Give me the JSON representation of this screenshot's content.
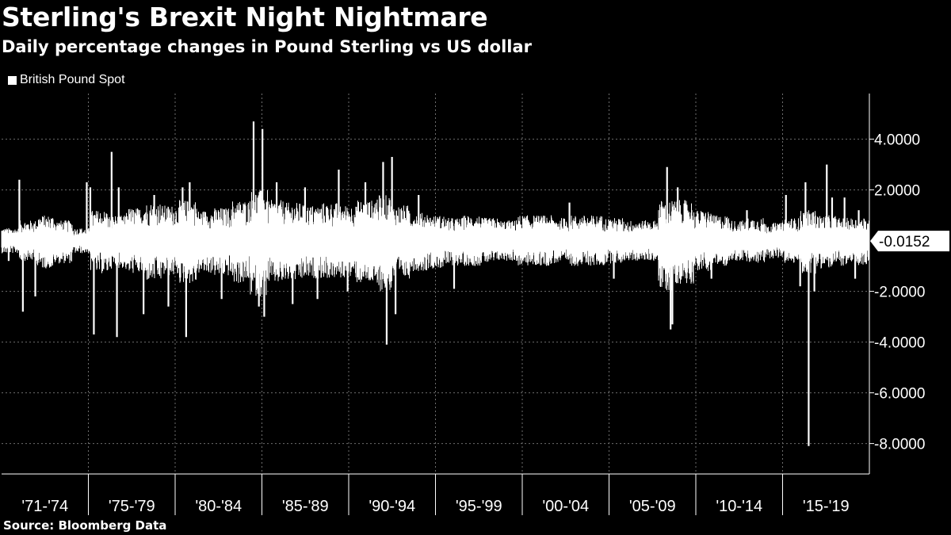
{
  "title": "Sterling's Brexit Night Nightmare",
  "subtitle": "Daily percentage changes in Pound Sterling vs US dollar",
  "legend": {
    "label": "British Pound Spot",
    "color": "#ffffff"
  },
  "source": "Source: Bloomberg Data",
  "colors": {
    "background": "#000000",
    "series": "#ffffff",
    "grid": "#6e6e6e"
  },
  "chart_data": {
    "type": "bar",
    "title": "Sterling's Brexit Night Nightmare",
    "subtitle": "Daily percentage changes in Pound Sterling vs US dollar",
    "ylim": [
      -9.2,
      5.8
    ],
    "y_ticks": [
      4,
      2,
      -2,
      -4,
      -6,
      -8
    ],
    "y_tick_labels": [
      "4.0000",
      "2.0000",
      "-2.0000",
      "-4.0000",
      "-6.0000",
      "-8.0000"
    ],
    "y_axis_side": "right",
    "grid": true,
    "legend_position": "top-left",
    "categories": [
      "'71-'74",
      "'75-'79",
      "'80-'84",
      "'85-'89",
      "'90-'94",
      "'95-'99",
      "'00-'04",
      "'05-'09",
      "'10-'14",
      "'15-'19"
    ],
    "last_value": -0.0152,
    "last_value_label": "-0.0152",
    "series": [
      {
        "name": "British Pound Spot",
        "envelope": {
          "period_start": [
            1971,
            1972,
            1973,
            1974,
            1975,
            1976,
            1977,
            1978,
            1979,
            1980,
            1981,
            1982,
            1983,
            1984,
            1985,
            1986,
            1987,
            1988,
            1989,
            1990,
            1991,
            1992,
            1993,
            1994,
            1995,
            1996,
            1997,
            1998,
            1999,
            2000,
            2001,
            2002,
            2003,
            2004,
            2005,
            2006,
            2007,
            2008,
            2009,
            2010,
            2011,
            2012,
            2013,
            2014,
            2015,
            2016,
            2017,
            2018,
            2019
          ],
          "typical_high": [
            0.5,
            0.8,
            1.0,
            0.8,
            0.5,
            1.2,
            1.0,
            1.3,
            1.5,
            1.4,
            1.6,
            1.2,
            1.3,
            1.6,
            2.0,
            1.6,
            1.5,
            1.4,
            1.5,
            1.4,
            1.6,
            1.8,
            1.4,
            1.1,
            1.0,
            0.9,
            1.0,
            0.9,
            0.8,
            1.0,
            1.0,
            0.9,
            1.0,
            1.0,
            0.9,
            0.8,
            0.8,
            1.6,
            1.6,
            1.2,
            1.0,
            0.8,
            0.9,
            0.7,
            0.9,
            1.2,
            1.0,
            0.9,
            0.9
          ],
          "typical_low": [
            -0.5,
            -0.8,
            -1.1,
            -0.9,
            -0.5,
            -1.3,
            -1.1,
            -1.3,
            -1.6,
            -1.4,
            -1.7,
            -1.3,
            -1.4,
            -1.7,
            -2.2,
            -1.7,
            -1.6,
            -1.5,
            -1.5,
            -1.5,
            -1.7,
            -2.0,
            -1.5,
            -1.2,
            -1.1,
            -1.0,
            -1.0,
            -0.9,
            -0.8,
            -1.0,
            -1.0,
            -0.9,
            -1.0,
            -1.0,
            -0.9,
            -0.8,
            -0.8,
            -2.0,
            -1.7,
            -1.2,
            -1.0,
            -0.8,
            -0.9,
            -0.7,
            -0.9,
            -1.3,
            -1.1,
            -1.0,
            -1.0
          ]
        },
        "spikes": [
          {
            "t": 1971.4,
            "v": -0.8
          },
          {
            "t": 1972.0,
            "v": 2.4
          },
          {
            "t": 1972.2,
            "v": -2.8
          },
          {
            "t": 1972.9,
            "v": -2.2
          },
          {
            "t": 1975.8,
            "v": 2.3
          },
          {
            "t": 1976.2,
            "v": -3.7
          },
          {
            "t": 1976.0,
            "v": 2.1
          },
          {
            "t": 1977.2,
            "v": 3.5
          },
          {
            "t": 1977.5,
            "v": -3.8
          },
          {
            "t": 1977.6,
            "v": 2.1
          },
          {
            "t": 1979.0,
            "v": -2.9
          },
          {
            "t": 1979.6,
            "v": 1.8
          },
          {
            "t": 1980.4,
            "v": -2.6
          },
          {
            "t": 1981.2,
            "v": 2.1
          },
          {
            "t": 1981.4,
            "v": -3.8
          },
          {
            "t": 1981.6,
            "v": 2.3
          },
          {
            "t": 1983.4,
            "v": -2.3
          },
          {
            "t": 1985.2,
            "v": 4.7
          },
          {
            "t": 1985.5,
            "v": -2.6
          },
          {
            "t": 1985.7,
            "v": 4.4
          },
          {
            "t": 1985.8,
            "v": -3.0
          },
          {
            "t": 1986.5,
            "v": 2.3
          },
          {
            "t": 1987.4,
            "v": -2.5
          },
          {
            "t": 1988.1,
            "v": 2.1
          },
          {
            "t": 1988.8,
            "v": -2.3
          },
          {
            "t": 1990.0,
            "v": 2.8
          },
          {
            "t": 1990.5,
            "v": -2.0
          },
          {
            "t": 1991.5,
            "v": 2.3
          },
          {
            "t": 1992.5,
            "v": 3.1
          },
          {
            "t": 1992.7,
            "v": -4.1
          },
          {
            "t": 1993.0,
            "v": 3.3
          },
          {
            "t": 1993.2,
            "v": -2.9
          },
          {
            "t": 1994.5,
            "v": 1.8
          },
          {
            "t": 1996.5,
            "v": -1.9
          },
          {
            "t": 2003.0,
            "v": 1.5
          },
          {
            "t": 2005.5,
            "v": -1.5
          },
          {
            "t": 2008.5,
            "v": 2.9
          },
          {
            "t": 2008.7,
            "v": -3.5
          },
          {
            "t": 2008.8,
            "v": -3.3
          },
          {
            "t": 2009.1,
            "v": 2.1
          },
          {
            "t": 2011.0,
            "v": -1.5
          },
          {
            "t": 2013.0,
            "v": 1.2
          },
          {
            "t": 2015.2,
            "v": 1.8
          },
          {
            "t": 2016.0,
            "v": -1.8
          },
          {
            "t": 2016.3,
            "v": 2.3
          },
          {
            "t": 2016.48,
            "v": -8.1
          },
          {
            "t": 2016.8,
            "v": -2.0
          },
          {
            "t": 2017.5,
            "v": 3.0
          },
          {
            "t": 2017.8,
            "v": 1.7
          },
          {
            "t": 2018.5,
            "v": 1.7
          },
          {
            "t": 2019.1,
            "v": -1.5
          },
          {
            "t": 2019.3,
            "v": 1.2
          }
        ]
      }
    ]
  }
}
